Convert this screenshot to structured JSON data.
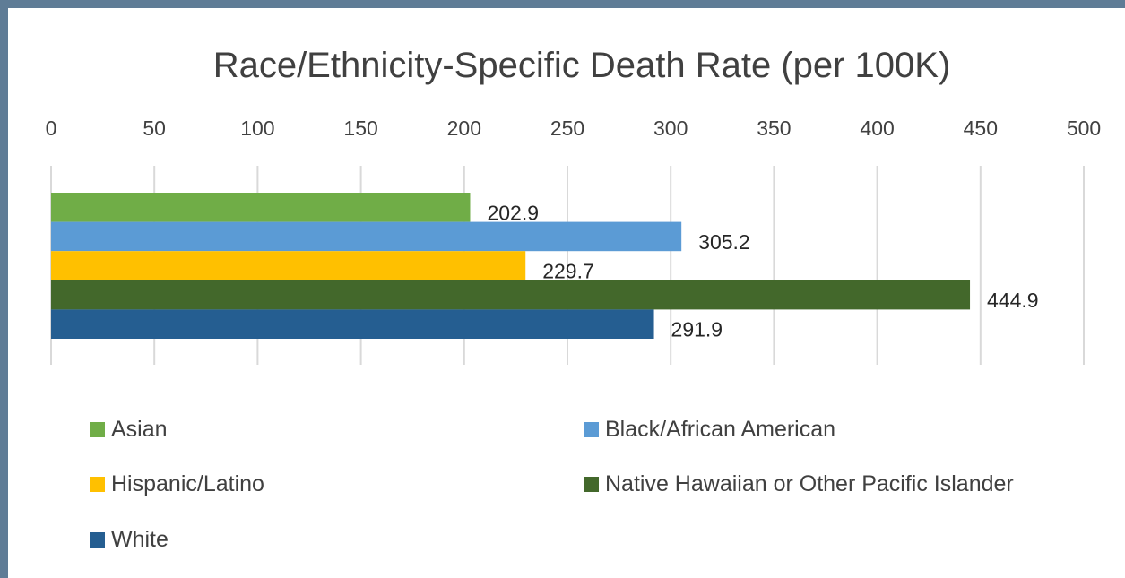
{
  "chart_data": {
    "type": "bar",
    "orientation": "horizontal",
    "title": "Race/Ethnicity-Specific Death Rate (per 100K)",
    "xlim": [
      0,
      500
    ],
    "xticks": [
      0,
      50,
      100,
      150,
      200,
      250,
      300,
      350,
      400,
      450,
      500
    ],
    "grid": true,
    "legend_position": "bottom",
    "series": [
      {
        "name": "Asian",
        "value": 202.9,
        "label": "202.9",
        "color": "#70ad47"
      },
      {
        "name": "Black/African American",
        "value": 305.2,
        "label": "305.2",
        "color": "#5b9bd5"
      },
      {
        "name": "Hispanic/Latino",
        "value": 229.7,
        "label": "229.7",
        "color": "#ffc000"
      },
      {
        "name": "Native Hawaiian or Other Pacific Islander",
        "value": 444.9,
        "label": "444.9",
        "color": "#43682b"
      },
      {
        "name": "White",
        "value": 291.9,
        "label": "291.9",
        "color": "#255e91"
      }
    ]
  }
}
